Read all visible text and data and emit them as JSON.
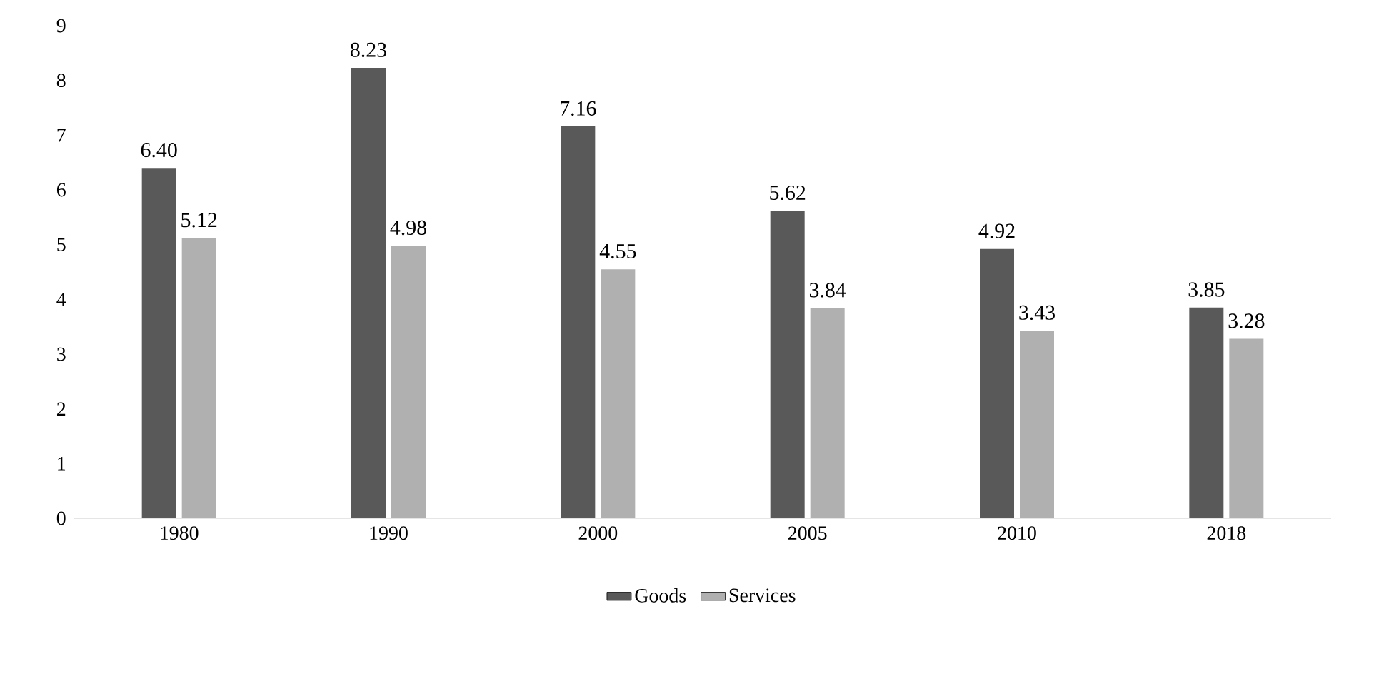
{
  "chart_data": {
    "type": "bar",
    "categories": [
      "1980",
      "1990",
      "2000",
      "2005",
      "2010",
      "2018"
    ],
    "series": [
      {
        "name": "Goods",
        "color": "#595959",
        "values": [
          6.4,
          8.23,
          7.16,
          5.62,
          4.92,
          3.85
        ],
        "value_labels": [
          "6.40",
          "8.23",
          "7.16",
          "5.62",
          "4.92",
          "3.85"
        ]
      },
      {
        "name": "Services",
        "color": "#b0b0b0",
        "values": [
          5.12,
          4.98,
          4.55,
          3.84,
          3.43,
          3.28
        ],
        "value_labels": [
          "5.12",
          "4.98",
          "4.55",
          "3.84",
          "3.43",
          "3.28"
        ]
      }
    ],
    "ylim": [
      0,
      9
    ],
    "yticks": [
      0,
      1,
      2,
      3,
      4,
      5,
      6,
      7,
      8,
      9
    ],
    "grid": false,
    "legend": "bottom"
  }
}
